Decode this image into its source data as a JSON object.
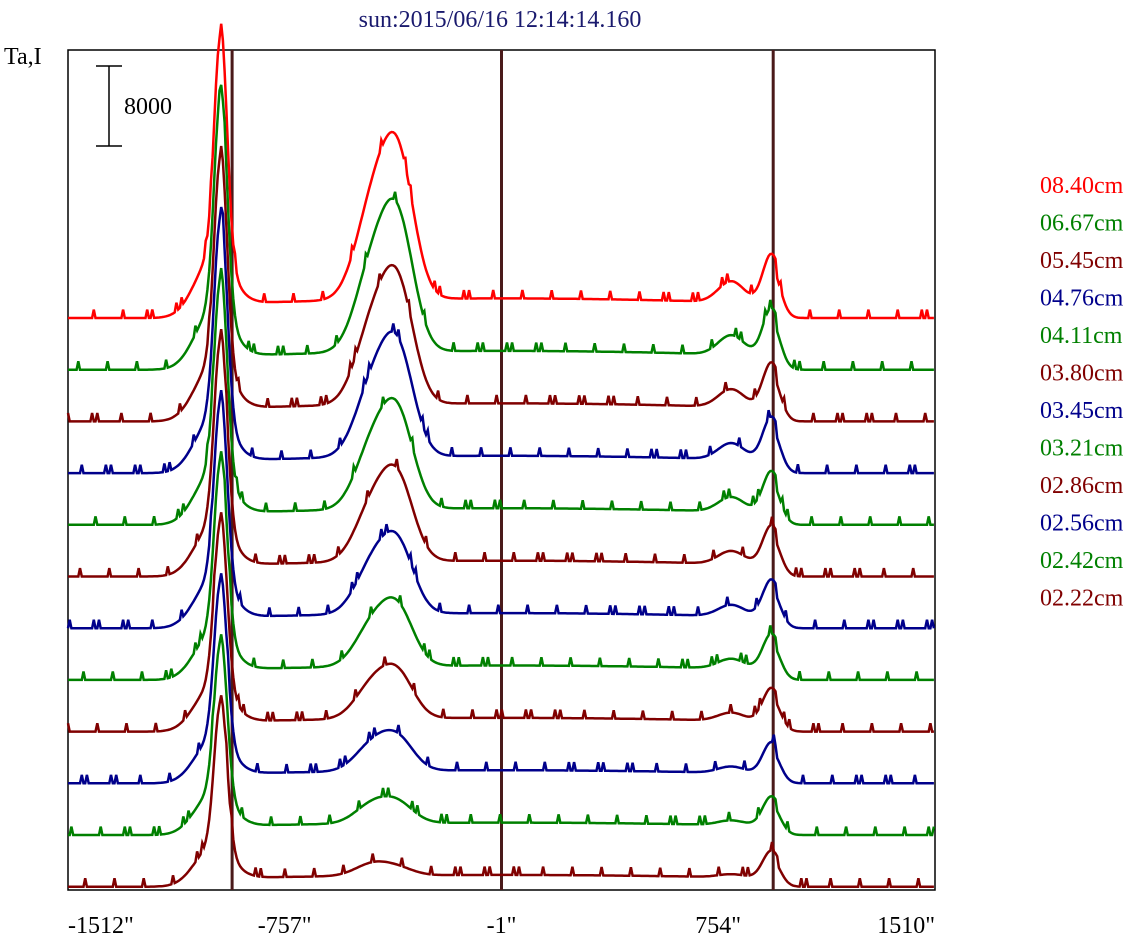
{
  "chart_data": {
    "type": "line",
    "title": "sun:2015/06/16 12:14:14.160",
    "ylabel": "Ta,I",
    "scale_bar_label": "8000",
    "xlim": [
      -1512,
      1510
    ],
    "x_tick_labels": [
      "-1512\"",
      "-757\"",
      "-1\"",
      "754\"",
      "1510\""
    ],
    "x_tick_values": [
      -1512,
      -757,
      -1,
      754,
      1510
    ],
    "reference_lines_x": [
      -940,
      -1,
      946
    ],
    "series": [
      {
        "name": "08.40cm",
        "color": "#ff0000"
      },
      {
        "name": "06.67cm",
        "color": "#008000"
      },
      {
        "name": "05.45cm",
        "color": "#800000"
      },
      {
        "name": "04.76cm",
        "color": "#00008b"
      },
      {
        "name": "04.11cm",
        "color": "#008000"
      },
      {
        "name": "03.80cm",
        "color": "#800000"
      },
      {
        "name": "03.45cm",
        "color": "#00008b"
      },
      {
        "name": "03.21cm",
        "color": "#008000"
      },
      {
        "name": "02.86cm",
        "color": "#800000"
      },
      {
        "name": "02.56cm",
        "color": "#00008b"
      },
      {
        "name": "02.42cm",
        "color": "#008000"
      },
      {
        "name": "02.22cm",
        "color": "#800000"
      }
    ],
    "colors": {
      "title": "#1a1a6e",
      "frame": "#000000",
      "reference_line": "#4a1a1a"
    }
  }
}
